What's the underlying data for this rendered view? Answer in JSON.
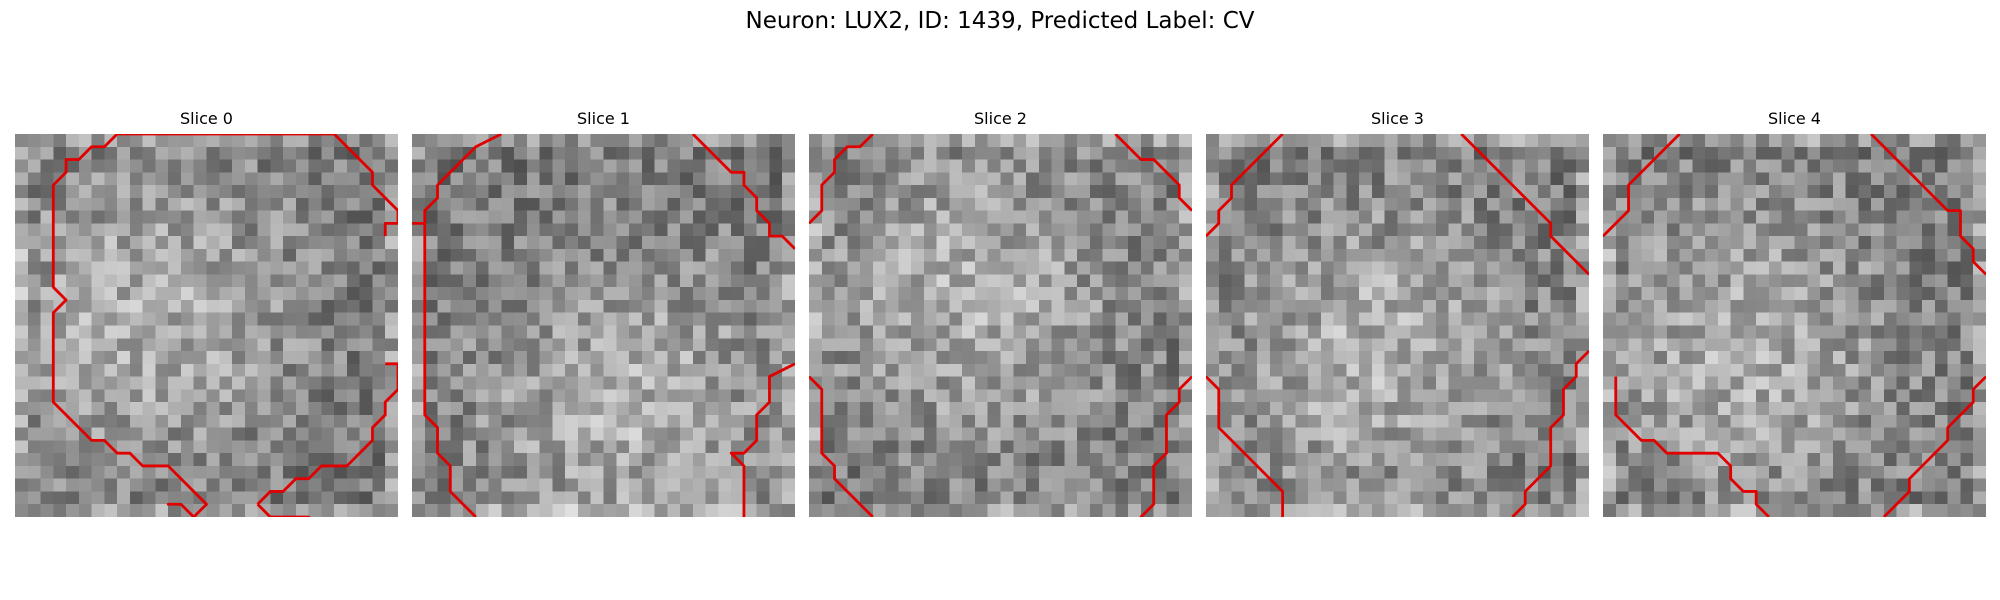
{
  "figure": {
    "title": "Neuron: LUX2, ID: 1439, Predicted Label: CV",
    "grid_size": 30,
    "contour_color": "#e00000",
    "colormap": "gray",
    "panels": [
      {
        "title": "Slice 0",
        "seed": 11,
        "bright_center": [
          0.32,
          0.45
        ],
        "contours": [
          [
            [
              3,
              5
            ],
            [
              3,
              4
            ],
            [
              4,
              3
            ],
            [
              4,
              2
            ],
            [
              5,
              2
            ],
            [
              6,
              1
            ],
            [
              7,
              1
            ],
            [
              8,
              0
            ],
            [
              9,
              0
            ],
            [
              25,
              0
            ],
            [
              26,
              1
            ],
            [
              27,
              2
            ],
            [
              28,
              3
            ],
            [
              28,
              4
            ],
            [
              29,
              5
            ],
            [
              30,
              6
            ],
            [
              30,
              7
            ],
            [
              29,
              7
            ],
            [
              29,
              8
            ]
          ],
          [
            [
              3,
              5
            ],
            [
              3,
              12
            ],
            [
              4,
              13
            ],
            [
              3,
              14
            ],
            [
              3,
              21
            ],
            [
              4,
              22
            ],
            [
              5,
              23
            ],
            [
              6,
              24
            ],
            [
              7,
              24
            ],
            [
              8,
              25
            ],
            [
              9,
              25
            ],
            [
              10,
              26
            ],
            [
              12,
              26
            ],
            [
              13,
              27
            ],
            [
              14,
              28
            ],
            [
              15,
              29
            ],
            [
              14,
              30
            ],
            [
              13,
              29
            ],
            [
              12,
              29
            ],
            [
              13,
              29
            ]
          ],
          [
            [
              19,
              29
            ],
            [
              20,
              28
            ],
            [
              21,
              28
            ],
            [
              22,
              27
            ],
            [
              23,
              27
            ],
            [
              24,
              26
            ],
            [
              26,
              26
            ],
            [
              27,
              25
            ],
            [
              28,
              24
            ],
            [
              28,
              23
            ],
            [
              29,
              22
            ],
            [
              29,
              21
            ],
            [
              30,
              20
            ],
            [
              30,
              18
            ],
            [
              29,
              18
            ]
          ],
          [
            [
              19,
              29
            ],
            [
              20,
              30
            ],
            [
              23,
              30
            ],
            [
              24,
              31
            ]
          ]
        ]
      },
      {
        "title": "Slice 1",
        "seed": 23,
        "bright_center": [
          0.55,
          0.7
        ],
        "contours": [
          [
            [
              7,
              0
            ],
            [
              5,
              1
            ],
            [
              4,
              2
            ],
            [
              3,
              3
            ],
            [
              2,
              4
            ],
            [
              2,
              5
            ],
            [
              1,
              6
            ],
            [
              1,
              7
            ],
            [
              0,
              7
            ]
          ],
          [
            [
              22,
              0
            ],
            [
              23,
              1
            ],
            [
              24,
              2
            ],
            [
              25,
              3
            ],
            [
              26,
              3
            ],
            [
              26,
              4
            ],
            [
              27,
              5
            ],
            [
              27,
              6
            ],
            [
              28,
              7
            ],
            [
              28,
              8
            ],
            [
              29,
              8
            ],
            [
              30,
              9
            ]
          ],
          [
            [
              1,
              7
            ],
            [
              1,
              22
            ],
            [
              2,
              23
            ],
            [
              2,
              25
            ],
            [
              3,
              26
            ],
            [
              3,
              28
            ],
            [
              4,
              29
            ],
            [
              5,
              30
            ]
          ],
          [
            [
              30,
              18
            ],
            [
              28,
              19
            ],
            [
              28,
              21
            ],
            [
              27,
              22
            ],
            [
              27,
              24
            ],
            [
              26,
              25
            ],
            [
              25,
              25
            ],
            [
              26,
              26
            ],
            [
              26,
              29
            ],
            [
              26,
              31
            ]
          ]
        ]
      },
      {
        "title": "Slice 2",
        "seed": 37,
        "bright_center": [
          0.4,
          0.4
        ],
        "contours": [
          [
            [
              5,
              0
            ],
            [
              4,
              1
            ],
            [
              3,
              1
            ],
            [
              2,
              2
            ],
            [
              2,
              3
            ],
            [
              1,
              4
            ],
            [
              1,
              6
            ],
            [
              0,
              7
            ]
          ],
          [
            [
              24,
              0
            ],
            [
              25,
              1
            ],
            [
              26,
              2
            ],
            [
              27,
              2
            ],
            [
              28,
              3
            ],
            [
              29,
              4
            ],
            [
              29,
              5
            ],
            [
              30,
              6
            ]
          ],
          [
            [
              0,
              19
            ],
            [
              1,
              20
            ],
            [
              1,
              25
            ],
            [
              2,
              26
            ],
            [
              2,
              27
            ],
            [
              3,
              28
            ],
            [
              4,
              29
            ],
            [
              5,
              30
            ]
          ],
          [
            [
              30,
              19
            ],
            [
              29,
              20
            ],
            [
              29,
              21
            ],
            [
              28,
              22
            ],
            [
              28,
              25
            ],
            [
              27,
              26
            ],
            [
              27,
              29
            ],
            [
              26,
              30
            ],
            [
              26,
              31
            ]
          ]
        ]
      },
      {
        "title": "Slice 3",
        "seed": 51,
        "bright_center": [
          0.42,
          0.55
        ],
        "contours": [
          [
            [
              6,
              0
            ],
            [
              5,
              1
            ],
            [
              4,
              2
            ],
            [
              3,
              3
            ],
            [
              2,
              4
            ],
            [
              2,
              5
            ],
            [
              1,
              6
            ],
            [
              1,
              7
            ],
            [
              0,
              8
            ]
          ],
          [
            [
              20,
              0
            ],
            [
              21,
              1
            ],
            [
              22,
              2
            ],
            [
              23,
              3
            ],
            [
              24,
              4
            ],
            [
              25,
              5
            ],
            [
              26,
              6
            ],
            [
              27,
              7
            ],
            [
              27,
              8
            ],
            [
              28,
              9
            ],
            [
              29,
              10
            ],
            [
              30,
              11
            ]
          ],
          [
            [
              0,
              19
            ],
            [
              1,
              20
            ],
            [
              1,
              23
            ],
            [
              2,
              24
            ],
            [
              3,
              25
            ],
            [
              4,
              26
            ],
            [
              5,
              27
            ],
            [
              6,
              28
            ],
            [
              6,
              30
            ]
          ],
          [
            [
              30,
              17
            ],
            [
              29,
              18
            ],
            [
              29,
              19
            ],
            [
              28,
              20
            ],
            [
              28,
              22
            ],
            [
              27,
              23
            ],
            [
              27,
              26
            ],
            [
              26,
              27
            ],
            [
              25,
              28
            ],
            [
              25,
              29
            ],
            [
              24,
              30
            ]
          ]
        ]
      },
      {
        "title": "Slice 4",
        "seed": 67,
        "bright_center": [
          0.35,
          0.55
        ],
        "contours": [
          [
            [
              6,
              0
            ],
            [
              5,
              1
            ],
            [
              4,
              2
            ],
            [
              3,
              3
            ],
            [
              2,
              4
            ],
            [
              2,
              6
            ],
            [
              1,
              7
            ],
            [
              0,
              8
            ]
          ],
          [
            [
              21,
              0
            ],
            [
              22,
              1
            ],
            [
              23,
              2
            ],
            [
              24,
              3
            ],
            [
              25,
              4
            ],
            [
              26,
              5
            ],
            [
              27,
              6
            ],
            [
              28,
              6
            ],
            [
              28,
              8
            ],
            [
              29,
              9
            ],
            [
              29,
              10
            ],
            [
              30,
              11
            ]
          ],
          [
            [
              1,
              19
            ],
            [
              1,
              22
            ],
            [
              2,
              23
            ],
            [
              3,
              24
            ],
            [
              4,
              24
            ],
            [
              5,
              25
            ],
            [
              9,
              25
            ],
            [
              10,
              26
            ],
            [
              10,
              27
            ],
            [
              11,
              28
            ],
            [
              12,
              28
            ],
            [
              12,
              29
            ],
            [
              13,
              30
            ]
          ],
          [
            [
              30,
              19
            ],
            [
              29,
              20
            ],
            [
              29,
              21
            ],
            [
              28,
              22
            ],
            [
              27,
              23
            ],
            [
              27,
              24
            ],
            [
              26,
              25
            ],
            [
              25,
              26
            ],
            [
              24,
              27
            ],
            [
              24,
              28
            ],
            [
              23,
              29
            ],
            [
              22,
              30
            ]
          ]
        ]
      }
    ]
  }
}
